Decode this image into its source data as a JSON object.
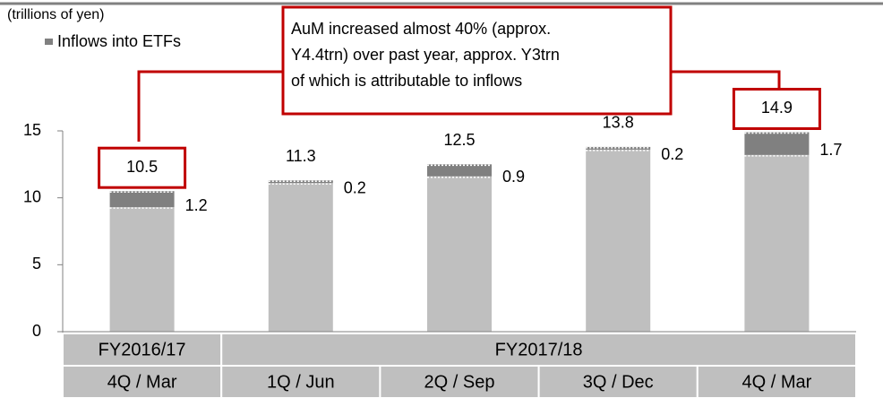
{
  "chart_data": {
    "type": "bar",
    "y_axis_label": "(trillions of yen)",
    "annotation": [
      "AuM increased almost 40% (approx.",
      "Y4.4trn) over past year, approx. Y3trn",
      "of which is attributable to inflows"
    ],
    "groups": [
      "FY2016/17",
      "FY2017/18"
    ],
    "categories": [
      "4Q / Mar",
      "1Q / Jun",
      "2Q / Sep",
      "3Q / Dec",
      "4Q / Mar"
    ],
    "series": [
      {
        "color": "#bfbfbf",
        "values": [
          9.3,
          11.1,
          11.6,
          13.6,
          13.2
        ]
      },
      {
        "name": "Inflows into ETFs",
        "color": "#808080",
        "values": [
          1.2,
          0.2,
          0.9,
          0.2,
          1.7
        ]
      }
    ],
    "totals": [
      10.5,
      11.3,
      12.5,
      13.8,
      14.9
    ],
    "ylim": [
      0,
      15
    ],
    "yticks": [
      0,
      5,
      10,
      15
    ]
  }
}
